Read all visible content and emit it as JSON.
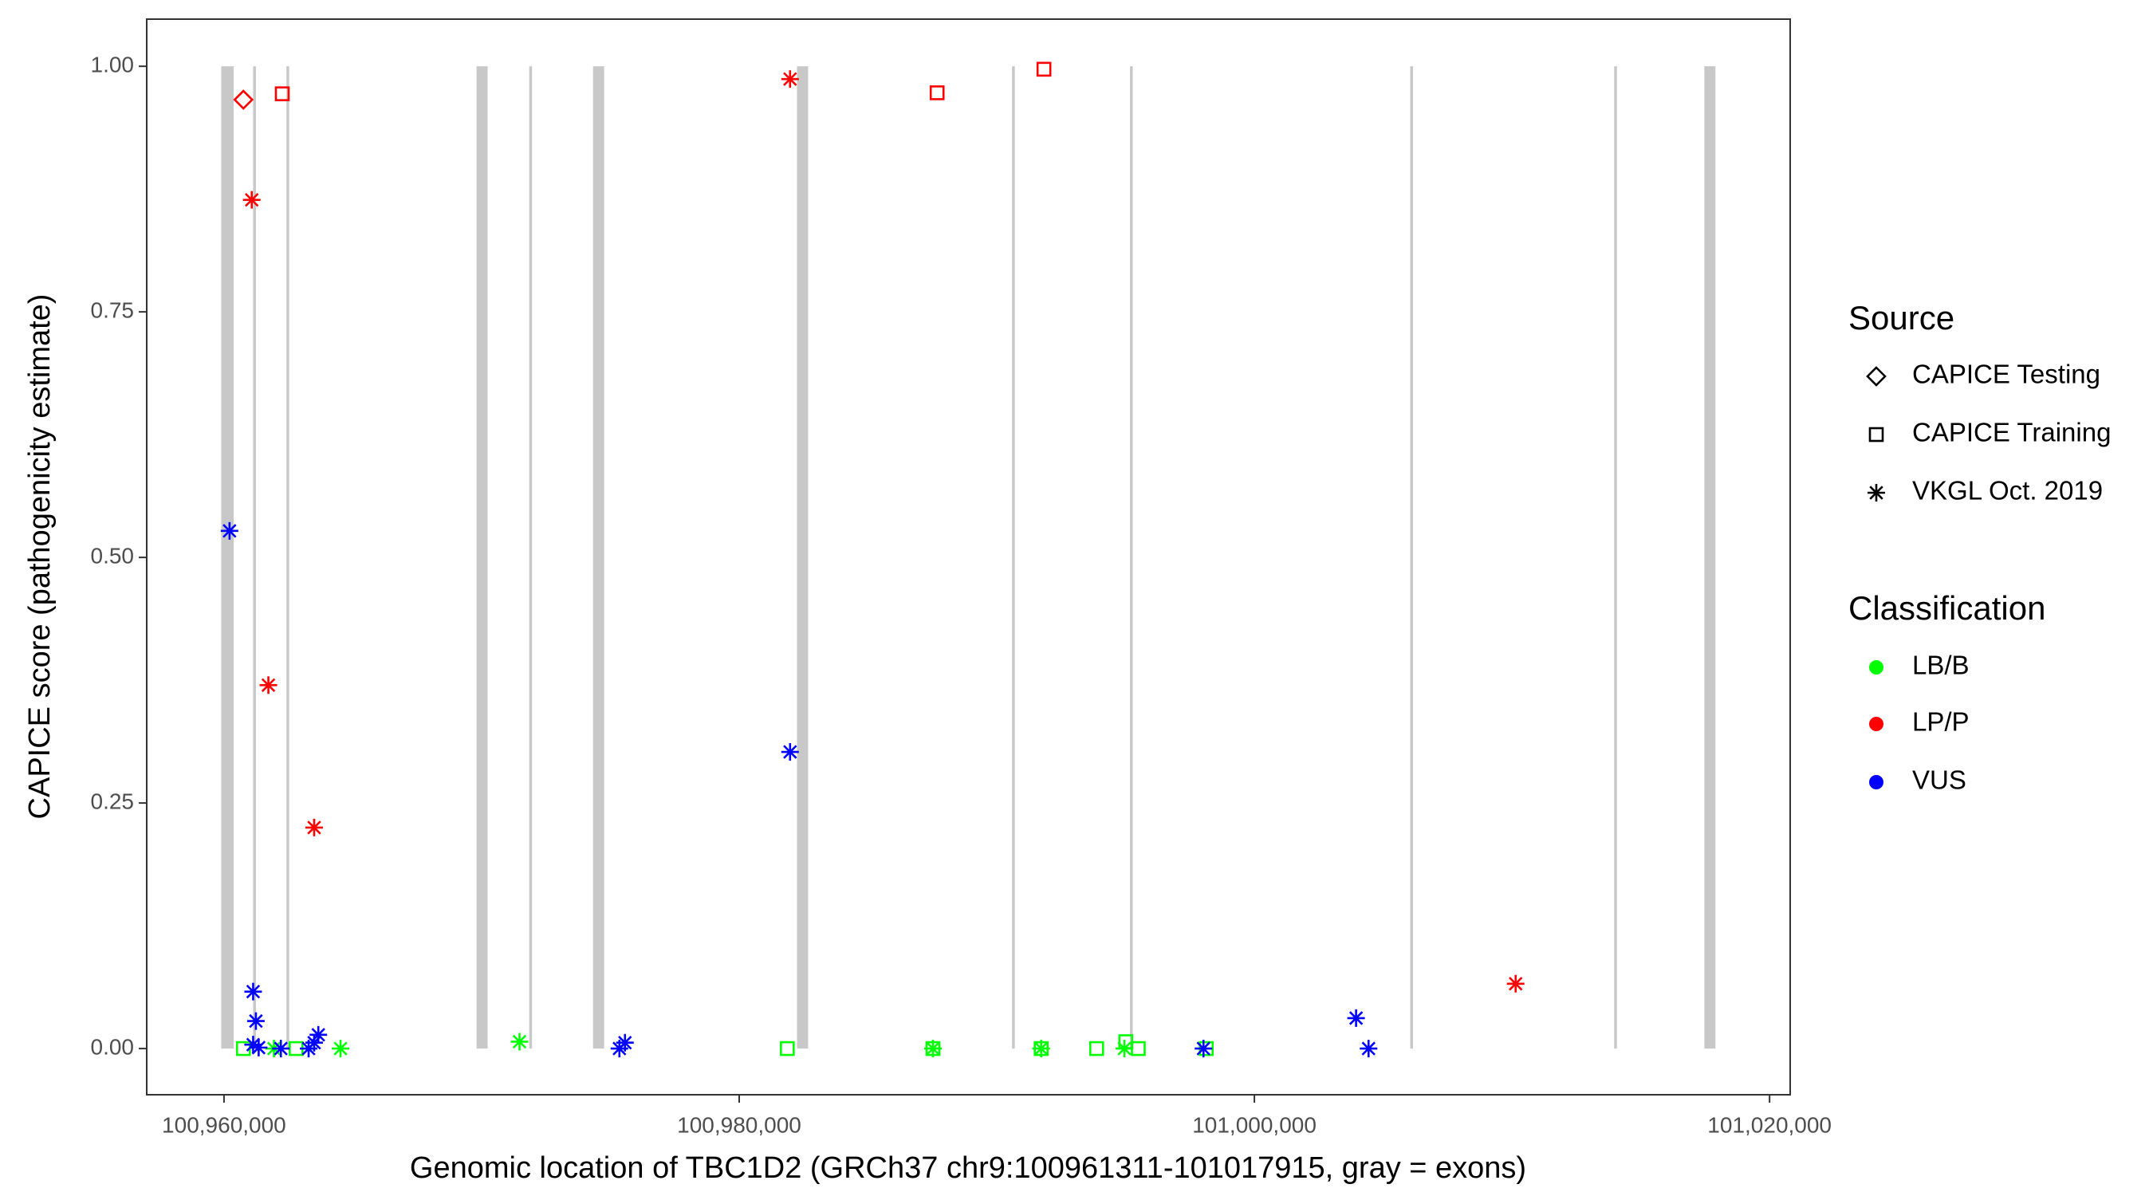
{
  "chart_data": {
    "type": "scatter",
    "x_label": "Genomic location of TBC1D2 (GRCh37 chr9:100961311-101017915, gray = exons)",
    "y_label": "CAPICE score (pathogenicity estimate)",
    "xlim": [
      100957000,
      101020800
    ],
    "ylim": [
      -0.047,
      1.048
    ],
    "xticks": [
      {
        "value": 100960000,
        "label": "100,960,000"
      },
      {
        "value": 100980000,
        "label": "100,980,000"
      },
      {
        "value": 101000000,
        "label": "101,000,000"
      },
      {
        "value": 101020000,
        "label": "101,020,000"
      }
    ],
    "yticks": [
      {
        "value": 0,
        "label": "0.00"
      },
      {
        "value": 0.25,
        "label": "0.25"
      },
      {
        "value": 0.5,
        "label": "0.50"
      },
      {
        "value": 0.75,
        "label": "0.75"
      },
      {
        "value": 1,
        "label": "1.00"
      }
    ],
    "exon_color": "#c8c8c8",
    "exon_y": [
      0,
      1
    ],
    "exons": [
      [
        100959892,
        100960377
      ],
      [
        100961131,
        100961239
      ],
      [
        100962424,
        100962531
      ],
      [
        100969803,
        100970234
      ],
      [
        100971849,
        100971957
      ],
      [
        100974327,
        100974758
      ],
      [
        100982244,
        100982675
      ],
      [
        100990592,
        100990700
      ],
      [
        100995170,
        100995278
      ],
      [
        101006050,
        101006158
      ],
      [
        101013967,
        101014075
      ],
      [
        101017468,
        101017899
      ]
    ],
    "legends": [
      {
        "title": "Source",
        "entries": [
          {
            "label": "CAPICE Testing",
            "shape": "diamond"
          },
          {
            "label": "CAPICE Training",
            "shape": "square"
          },
          {
            "label": "VKGL Oct. 2019",
            "shape": "asterisk"
          }
        ]
      },
      {
        "title": "Classification",
        "entries": [
          {
            "label": "LB/B",
            "color": "#00ff00"
          },
          {
            "label": "LP/P",
            "color": "#ff0000"
          },
          {
            "label": "VUS",
            "color": "#0000ff"
          }
        ]
      }
    ],
    "series": [
      {
        "source": "CAPICE Testing",
        "classification": "LP/P",
        "x": [
          100960754
        ],
        "values": [
          0.966
        ]
      },
      {
        "source": "CAPICE Training",
        "classification": "LP/P",
        "x": [
          100962262,
          100987684,
          100991831
        ],
        "values": [
          0.972,
          0.973,
          0.997
        ]
      },
      {
        "source": "VKGL Oct. 2019",
        "classification": "LP/P",
        "x": [
          100961077,
          100961723,
          100963500,
          100981975,
          101010143
        ],
        "values": [
          0.864,
          0.37,
          0.225,
          0.987,
          0.066
        ]
      },
      {
        "source": "CAPICE Training",
        "classification": "LB/B",
        "x": [
          100960754,
          100962800,
          100981868,
          100987522,
          100991723,
          100993877,
          100995008,
          100995493,
          100998132
        ],
        "values": [
          0,
          0,
          0,
          0,
          0,
          0,
          0.007,
          0,
          0
        ]
      },
      {
        "source": "VKGL Oct. 2019",
        "classification": "LB/B",
        "x": [
          100961939,
          100964524,
          100971472,
          100987522,
          100991723,
          100994954
        ],
        "values": [
          0,
          0,
          0.007,
          0,
          0,
          0
        ]
      },
      {
        "source": "VKGL Oct. 2019",
        "classification": "VUS",
        "x": [
          100960215,
          100961131,
          100961239,
          100961131,
          100961346,
          100962208,
          100963285,
          100963500,
          100963662,
          100975350,
          100975566,
          100981975,
          100998024,
          101003948,
          101004433
        ],
        "values": [
          0.527,
          0.058,
          0.028,
          0.004,
          0.001,
          0,
          0,
          0.006,
          0.014,
          0,
          0.006,
          0.302,
          0,
          0.031,
          0
        ]
      }
    ]
  }
}
